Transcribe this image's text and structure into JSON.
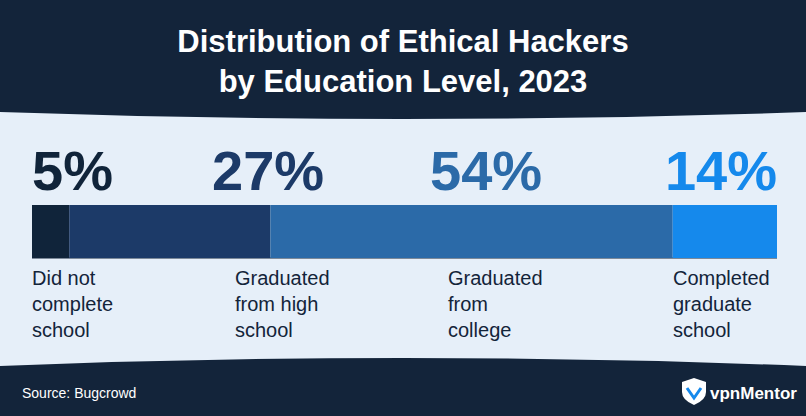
{
  "chart_data": {
    "type": "bar",
    "title": "Distribution of Ethical Hackers\nby Education Level, 2023",
    "categories": [
      "Did not\ncomplete\nschool",
      "Graduated\nfrom high\nschool",
      "Graduated\nfrom\ncollege",
      "Completed\ngraduate\nschool"
    ],
    "values": [
      5,
      27,
      54,
      14
    ],
    "value_labels": [
      "5%",
      "27%",
      "54%",
      "14%"
    ],
    "colors": [
      "#10243a",
      "#1c3a68",
      "#2b6aa8",
      "#1589ec"
    ],
    "orientation": "horizontal",
    "stacked": true,
    "data_labels": true,
    "tick_labels": false,
    "xlim": [
      0,
      100
    ],
    "source": "Source: Bugcrowd",
    "brand": "vpnMentor"
  }
}
